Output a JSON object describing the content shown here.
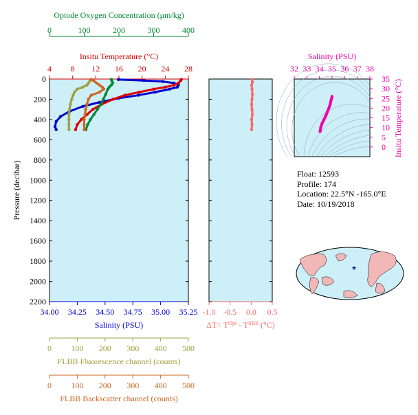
{
  "chart_data": [
    {
      "type": "line",
      "title": "",
      "ylabel": "Pressure (decibar)",
      "ylim": [
        2200,
        0
      ],
      "yticks": [
        0,
        200,
        400,
        600,
        800,
        1000,
        1200,
        1400,
        1600,
        1800,
        2000,
        2200
      ],
      "axes": {
        "salinity": {
          "label": "Salinity (PSU)",
          "range": [
            34.0,
            35.25
          ],
          "ticks": [
            "34.00",
            "34.25",
            "34.50",
            "34.75",
            "35.00",
            "35.25"
          ],
          "color": "#0000cc"
        },
        "temperature": {
          "label": "Insitu Temperature (°C)",
          "range": [
            4,
            28
          ],
          "ticks": [
            "4",
            "8",
            "12",
            "16",
            "20",
            "24",
            "28"
          ],
          "color": "#dd0000"
        },
        "oxygen": {
          "label": "Optode Oxygen Concentration (μm/kg)",
          "range": [
            0,
            400
          ],
          "ticks": [
            "0",
            "100",
            "200",
            "300",
            "400"
          ],
          "color": "#008833"
        },
        "fluorescence": {
          "label": "FLBB Fluorescence channel (counts)",
          "range": [
            0,
            500
          ],
          "ticks": [
            "0",
            "100",
            "200",
            "300",
            "400",
            "500"
          ],
          "color": "#a0a040"
        },
        "backscatter": {
          "label": "FLBB Backscatter channel (counts)",
          "range": [
            0,
            500
          ],
          "ticks": [
            "0",
            "100",
            "200",
            "300",
            "400",
            "500"
          ],
          "color": "#cc6622"
        }
      },
      "series": [
        {
          "name": "Salinity (PSU)",
          "axis": "salinity",
          "color": "#0000cc",
          "points": [
            [
              34.62,
              5
            ],
            [
              34.85,
              15
            ],
            [
              35.02,
              25
            ],
            [
              35.12,
              40
            ],
            [
              35.16,
              60
            ],
            [
              35.15,
              80
            ],
            [
              35.08,
              100
            ],
            [
              34.95,
              130
            ],
            [
              34.8,
              160
            ],
            [
              34.62,
              190
            ],
            [
              34.45,
              230
            ],
            [
              34.3,
              270
            ],
            [
              34.18,
              320
            ],
            [
              34.1,
              370
            ],
            [
              34.06,
              420
            ],
            [
              34.05,
              470
            ],
            [
              34.06,
              500
            ]
          ]
        },
        {
          "name": "Insitu Temperature (°C)",
          "axis": "temperature",
          "color": "#dd0000",
          "points": [
            [
              26.8,
              5
            ],
            [
              26.6,
              20
            ],
            [
              26.3,
              40
            ],
            [
              25.5,
              60
            ],
            [
              24,
              80
            ],
            [
              22,
              100
            ],
            [
              19.5,
              130
            ],
            [
              17,
              160
            ],
            [
              15,
              200
            ],
            [
              13,
              250
            ],
            [
              11.5,
              300
            ],
            [
              10.5,
              350
            ],
            [
              9.5,
              400
            ],
            [
              8.8,
              450
            ],
            [
              8.5,
              500
            ]
          ]
        },
        {
          "name": "Optode Oxygen Concentration (μm/kg)",
          "axis": "oxygen",
          "color": "#008833",
          "points": [
            [
              178,
              5
            ],
            [
              180,
              20
            ],
            [
              182,
              40
            ],
            [
              178,
              60
            ],
            [
              172,
              80
            ],
            [
              168,
              100
            ],
            [
              162,
              150
            ],
            [
              155,
              200
            ],
            [
              148,
              250
            ],
            [
              138,
              300
            ],
            [
              128,
              350
            ],
            [
              118,
              400
            ],
            [
              110,
              450
            ],
            [
              105,
              500
            ]
          ]
        },
        {
          "name": "FLBB Fluorescence channel (counts)",
          "axis": "fluorescence",
          "color": "#a0a040",
          "points": [
            [
              150,
              5
            ],
            [
              145,
              20
            ],
            [
              140,
              40
            ],
            [
              135,
              60
            ],
            [
              120,
              80
            ],
            [
              100,
              100
            ],
            [
              90,
              130
            ],
            [
              85,
              160
            ],
            [
              80,
              200
            ],
            [
              75,
              250
            ],
            [
              72,
              300
            ],
            [
              70,
              350
            ],
            [
              70,
              400
            ],
            [
              70,
              450
            ],
            [
              70,
              500
            ]
          ]
        },
        {
          "name": "FLBB Backscatter channel (counts)",
          "axis": "backscatter",
          "color": "#cc6622",
          "points": [
            [
              150,
              5
            ],
            [
              160,
              20
            ],
            [
              170,
              40
            ],
            [
              180,
              60
            ],
            [
              190,
              80
            ],
            [
              195,
              100
            ],
            [
              180,
              130
            ],
            [
              150,
              160
            ],
            [
              140,
              200
            ],
            [
              135,
              250
            ],
            [
              130,
              300
            ],
            [
              128,
              350
            ],
            [
              125,
              400
            ],
            [
              125,
              450
            ],
            [
              125,
              500
            ]
          ]
        }
      ]
    },
    {
      "type": "scatter",
      "xlabel": "ΔT= T^Opt - T^SBE (°C)",
      "xlim": [
        -1.0,
        0.5
      ],
      "xticks": [
        "-1.0",
        "-0.5",
        "0.0",
        "0.5"
      ],
      "ylim": [
        2200,
        0
      ],
      "series": [
        {
          "name": "ΔT",
          "color": "#ff6666",
          "points": [
            [
              0.02,
              5
            ],
            [
              0.03,
              30
            ],
            [
              0.01,
              60
            ],
            [
              0.02,
              100
            ],
            [
              0.03,
              150
            ],
            [
              0.02,
              200
            ],
            [
              0.01,
              250
            ],
            [
              0.02,
              300
            ],
            [
              0.03,
              350
            ],
            [
              0.01,
              400
            ],
            [
              0.02,
              450
            ],
            [
              0.01,
              500
            ]
          ]
        }
      ]
    },
    {
      "type": "scatter",
      "xlabel": "Salinity (PSU)",
      "ylabel": "Insitu Temperature (°C)",
      "xlim": [
        32,
        38
      ],
      "ylim": [
        -5,
        35
      ],
      "xticks": [
        "32",
        "33",
        "34",
        "35",
        "36",
        "37",
        "38"
      ],
      "yticks": [
        "0",
        "5",
        "10",
        "15",
        "20",
        "25",
        "30",
        "35"
      ],
      "color": "#ee00aa",
      "series": [
        {
          "name": "T-S",
          "color": "#ee00aa",
          "points": [
            [
              34.05,
              8
            ],
            [
              34.1,
              10
            ],
            [
              34.2,
              12
            ],
            [
              34.35,
              14
            ],
            [
              34.5,
              16
            ],
            [
              34.62,
              18
            ],
            [
              34.75,
              20
            ],
            [
              34.85,
              22
            ],
            [
              34.92,
              24
            ],
            [
              35.0,
              26
            ]
          ]
        }
      ]
    }
  ],
  "info": {
    "float": "Float:  12593",
    "profile": "Profile:  174",
    "location": "Location:  22.5°N  -165.0°E",
    "date": "Date:  10/19/2018"
  },
  "colors": {
    "plot_bg": "#cdeff8",
    "salinity": "#0000cc",
    "temperature": "#dd0000",
    "oxygen": "#008833",
    "fluorescence": "#a0a040",
    "backscatter": "#cc6622",
    "delta": "#ff6666",
    "ts": "#ee00aa"
  },
  "map": {
    "marker": "float-location-star"
  }
}
